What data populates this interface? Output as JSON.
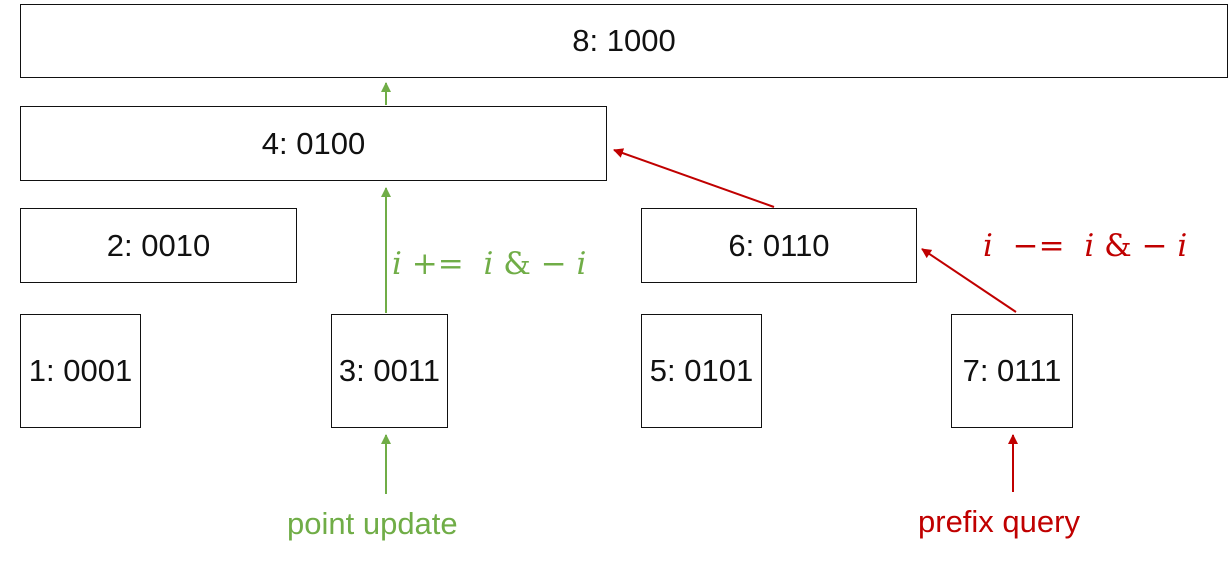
{
  "nodes": {
    "n8": "8: 1000",
    "n4": "4: 0100",
    "n2": "2: 0010",
    "n6": "6: 0110",
    "n1": "1: 0001",
    "n3": "3: 0011",
    "n5": "5: 0101",
    "n7": "7: 0111"
  },
  "update": {
    "formula": {
      "var_left": "i",
      "operator": "+=",
      "var_mid": "i",
      "amp": "&",
      "minus": "−",
      "var_right": "i"
    },
    "caption": "point update",
    "color": "#70ad47"
  },
  "query": {
    "formula": {
      "var_left": "i",
      "operator": "−=",
      "var_mid": "i",
      "amp": "&",
      "minus": "−",
      "var_right": "i"
    },
    "caption": "prefix query",
    "color": "#c00000"
  }
}
